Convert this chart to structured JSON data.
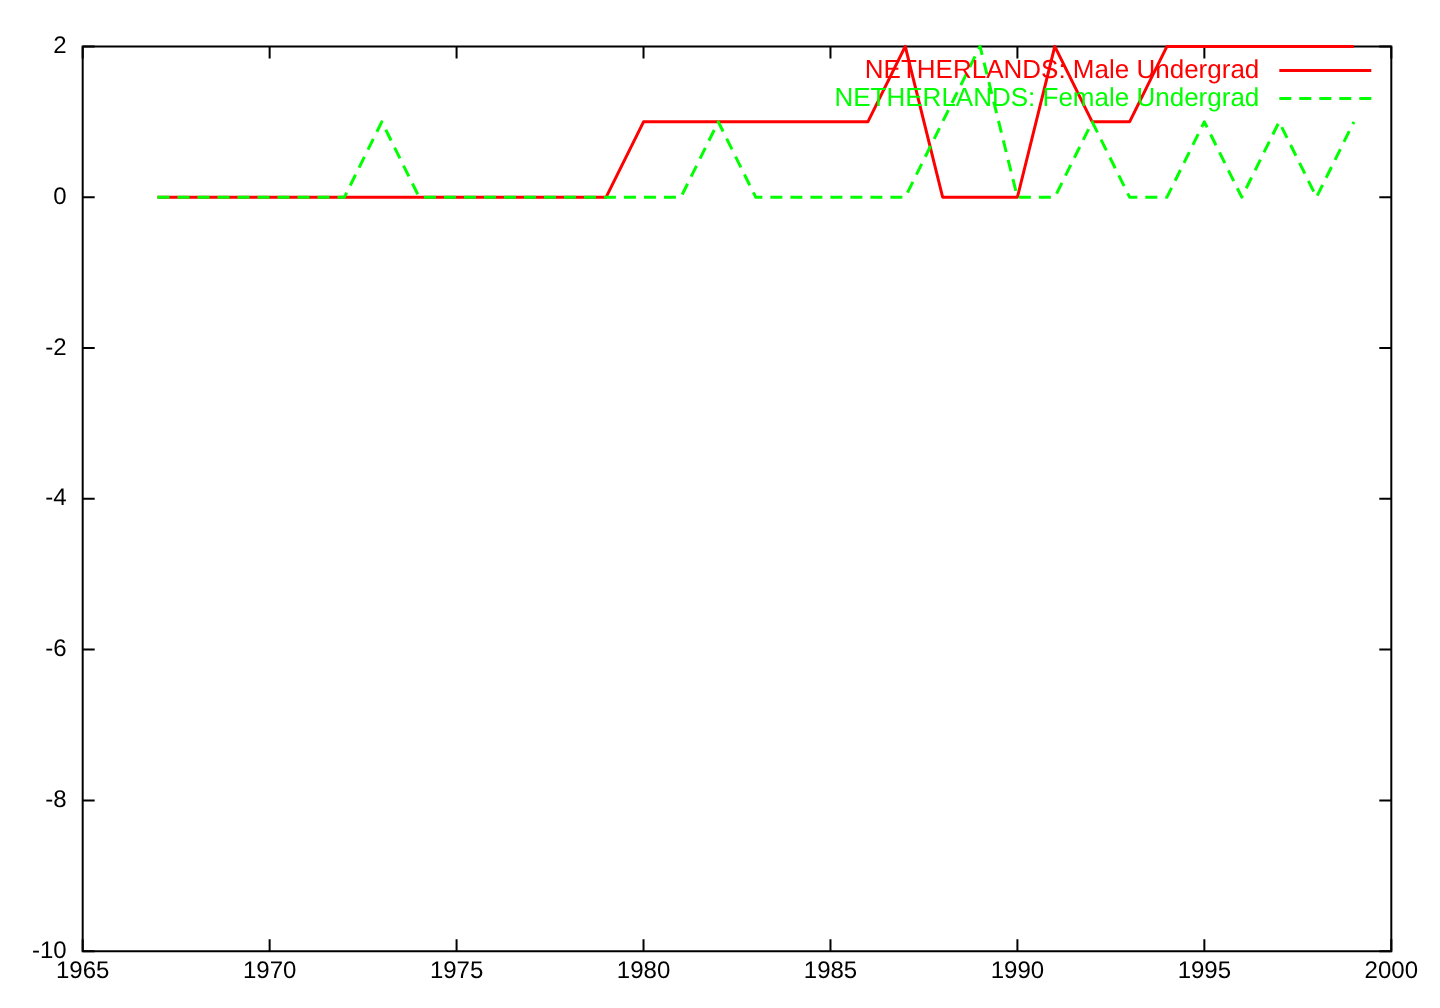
{
  "chart_data": {
    "type": "line",
    "x": [
      1967,
      1968,
      1969,
      1970,
      1971,
      1972,
      1973,
      1974,
      1975,
      1976,
      1977,
      1978,
      1979,
      1980,
      1981,
      1982,
      1983,
      1984,
      1985,
      1986,
      1987,
      1988,
      1989,
      1990,
      1991,
      1992,
      1993,
      1994,
      1995,
      1996,
      1997,
      1998,
      1999
    ],
    "series": [
      {
        "name": "NETHERLANDS: Male Undergrad",
        "color": "#ff0000",
        "line_style": "solid",
        "values": [
          0,
          0,
          0,
          0,
          0,
          0,
          0,
          0,
          0,
          0,
          0,
          0,
          0,
          1,
          1,
          1,
          1,
          1,
          1,
          1,
          2,
          0,
          0,
          0,
          2,
          1,
          1,
          2,
          2,
          2,
          2,
          2,
          2
        ]
      },
      {
        "name": "NETHERLANDS: Female Undergrad",
        "color": "#00ff00",
        "line_style": "dashed",
        "values": [
          0,
          0,
          0,
          0,
          0,
          0,
          1,
          0,
          0,
          0,
          0,
          0,
          0,
          0,
          0,
          1,
          0,
          0,
          0,
          0,
          0,
          1,
          2,
          0,
          0,
          1,
          0,
          0,
          1,
          0,
          1,
          0,
          1
        ]
      }
    ],
    "xlim": [
      1965,
      2000
    ],
    "xticks": [
      1965,
      1970,
      1975,
      1980,
      1985,
      1990,
      1995,
      2000
    ],
    "ylim": [
      -10,
      2
    ],
    "yticks": [
      -10,
      -8,
      -6,
      -4,
      -2,
      0,
      2
    ],
    "grid": false,
    "legend": "top right",
    "marker": "none"
  }
}
